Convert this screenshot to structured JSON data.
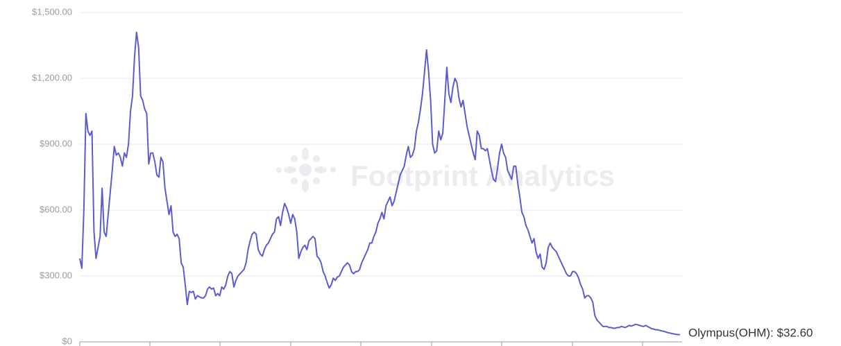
{
  "chart_data": {
    "type": "line",
    "watermark": "Footprint Analytics",
    "end_label": "Olympus(OHM): $32.60",
    "color": "#5b5bd0",
    "grid": true,
    "ylim": [
      0,
      1500
    ],
    "yticks": [
      {
        "value": 0,
        "label": "$0"
      },
      {
        "value": 300,
        "label": "$300.00"
      },
      {
        "value": 600,
        "label": "$600.00"
      },
      {
        "value": 900,
        "label": "$900.00"
      },
      {
        "value": 1200,
        "label": "$1,200.00"
      },
      {
        "value": 1500,
        "label": "$1,500.00"
      }
    ],
    "values": [
      380,
      335,
      600,
      1040,
      960,
      940,
      960,
      500,
      380,
      430,
      480,
      700,
      500,
      480,
      580,
      680,
      780,
      890,
      850,
      860,
      840,
      800,
      860,
      840,
      900,
      1050,
      1120,
      1300,
      1410,
      1340,
      1120,
      1100,
      1060,
      1040,
      810,
      860,
      860,
      820,
      760,
      750,
      840,
      820,
      700,
      640,
      580,
      620,
      500,
      480,
      490,
      470,
      360,
      340,
      260,
      170,
      230,
      225,
      230,
      195,
      210,
      205,
      200,
      200,
      210,
      240,
      250,
      240,
      245,
      210,
      220,
      210,
      250,
      240,
      260,
      300,
      320,
      310,
      250,
      280,
      300,
      310,
      320,
      330,
      360,
      420,
      460,
      490,
      500,
      490,
      420,
      400,
      390,
      420,
      440,
      450,
      470,
      490,
      500,
      560,
      570,
      530,
      590,
      630,
      610,
      580,
      540,
      580,
      560,
      500,
      380,
      410,
      430,
      440,
      420,
      460,
      470,
      480,
      470,
      390,
      380,
      360,
      320,
      300,
      270,
      245,
      260,
      290,
      280,
      295,
      300,
      320,
      340,
      350,
      360,
      350,
      320,
      310,
      320,
      320,
      330,
      360,
      380,
      400,
      420,
      450,
      450,
      480,
      500,
      540,
      560,
      590,
      560,
      620,
      640,
      660,
      620,
      640,
      680,
      720,
      760,
      780,
      800,
      850,
      890,
      840,
      850,
      880,
      960,
      1000,
      1060,
      1130,
      1230,
      1330,
      1230,
      1100,
      900,
      860,
      870,
      960,
      920,
      950,
      1100,
      1250,
      1130,
      1090,
      1160,
      1200,
      1180,
      1110,
      1070,
      1100,
      1040,
      980,
      940,
      900,
      860,
      830,
      960,
      940,
      880,
      880,
      870,
      880,
      830,
      780,
      740,
      730,
      790,
      860,
      900,
      860,
      840,
      780,
      760,
      740,
      800,
      800,
      720,
      660,
      590,
      570,
      530,
      510,
      480,
      450,
      470,
      410,
      380,
      400,
      340,
      330,
      360,
      430,
      450,
      430,
      420,
      410,
      390,
      370,
      350,
      330,
      310,
      300,
      300,
      320,
      320,
      310,
      290,
      260,
      240,
      200,
      210,
      210,
      200,
      180,
      120,
      100,
      90,
      80,
      70,
      70,
      70,
      65,
      65,
      62,
      62,
      65,
      65,
      70,
      68,
      65,
      70,
      75,
      72,
      75,
      80,
      78,
      75,
      72,
      70,
      75,
      70,
      65,
      60,
      58,
      55,
      55,
      52,
      50,
      48,
      45,
      42,
      40,
      38,
      36,
      34,
      33,
      32.6
    ]
  }
}
